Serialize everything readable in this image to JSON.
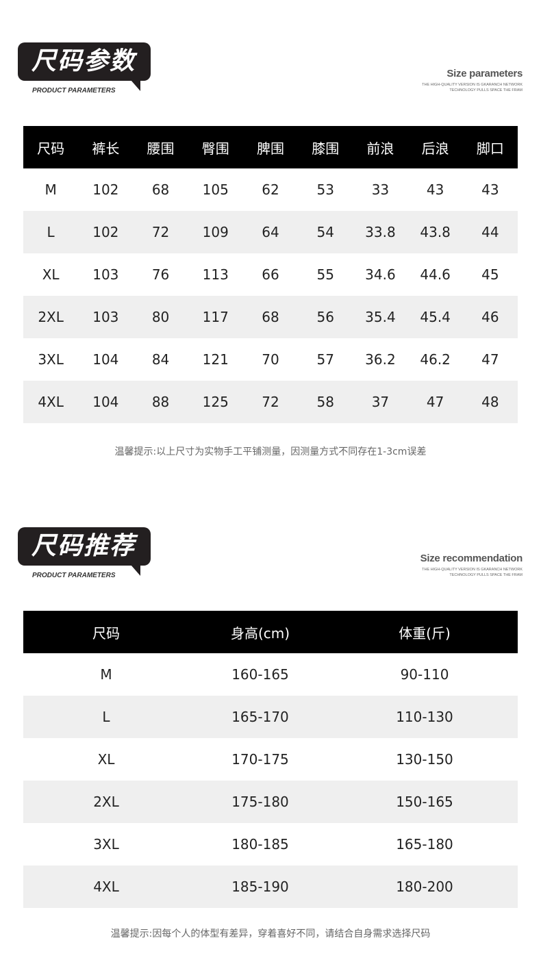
{
  "section1": {
    "badge": "尺码参数",
    "subtitle": "PRODUCT PARAMETERS",
    "right_title": "Size parameters",
    "right_sub1": "THE HIGH-QUALITY VERSION IS GKARANCH NETWORK",
    "right_sub2": "TECHNOLOGY PULLS SPACE THE FRAM",
    "headers": [
      "尺码",
      "裤长",
      "腰围",
      "臀围",
      "脾围",
      "膝围",
      "前浪",
      "后浪",
      "脚口"
    ],
    "rows": [
      [
        "M",
        "102",
        "68",
        "105",
        "62",
        "53",
        "33",
        "43",
        "43"
      ],
      [
        "L",
        "102",
        "72",
        "109",
        "64",
        "54",
        "33.8",
        "43.8",
        "44"
      ],
      [
        "XL",
        "103",
        "76",
        "113",
        "66",
        "55",
        "34.6",
        "44.6",
        "45"
      ],
      [
        "2XL",
        "103",
        "80",
        "117",
        "68",
        "56",
        "35.4",
        "45.4",
        "46"
      ],
      [
        "3XL",
        "104",
        "84",
        "121",
        "70",
        "57",
        "36.2",
        "46.2",
        "47"
      ],
      [
        "4XL",
        "104",
        "88",
        "125",
        "72",
        "58",
        "37",
        "47",
        "48"
      ]
    ],
    "note": "温馨提示:以上尺寸为实物手工平铺测量，因测量方式不同存在1-3cm误差"
  },
  "section2": {
    "badge": "尺码推荐",
    "subtitle": "PRODUCT PARAMETERS",
    "right_title": "Size recommendation",
    "right_sub1": "THE HIGH-QUALITY VERSION IS GKARANCH NETWORK",
    "right_sub2": "TECHNOLOGY PULLS SPACE THE FRAM",
    "headers": [
      "尺码",
      "身高(cm)",
      "体重(斤)"
    ],
    "rows": [
      [
        "M",
        "160-165",
        "90-110"
      ],
      [
        "L",
        "165-170",
        "110-130"
      ],
      [
        "XL",
        "170-175",
        "130-150"
      ],
      [
        "2XL",
        "175-180",
        "150-165"
      ],
      [
        "3XL",
        "180-185",
        "165-180"
      ],
      [
        "4XL",
        "185-190",
        "180-200"
      ]
    ],
    "note": "温馨提示:因每个人的体型有差异，穿着喜好不同，请结合自身需求选择尺码"
  }
}
